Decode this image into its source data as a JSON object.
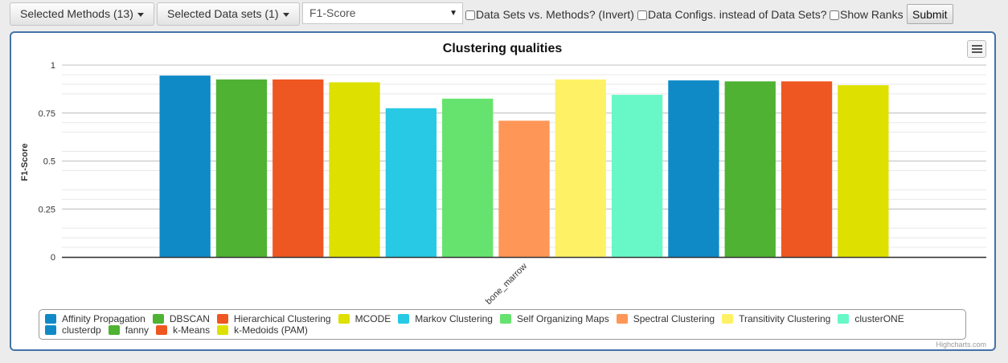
{
  "toolbar": {
    "methods_button": "Selected Methods (13)",
    "datasets_button": "Selected Data sets (1)",
    "metric_select": "F1-Score",
    "checkbox_invert": "Data Sets vs. Methods? (Invert)",
    "checkbox_configs": "Data Configs. instead of Data Sets?",
    "checkbox_ranks": "Show Ranks",
    "submit": "Submit"
  },
  "credits": "Highcharts.com",
  "chart_data": {
    "type": "bar",
    "title": "Clustering qualities",
    "ylabel": "F1-Score",
    "xlabel": "",
    "categories": [
      "bone_marrow"
    ],
    "ylim": [
      0,
      1
    ],
    "yticks": [
      "0",
      "0.25",
      "0.5",
      "0.75",
      "1"
    ],
    "grid": true,
    "legend_position": "bottom",
    "series": [
      {
        "name": "Affinity Propagation",
        "color": "#0f8ac7",
        "values": [
          0.945
        ]
      },
      {
        "name": "DBSCAN",
        "color": "#4fb233",
        "values": [
          0.925
        ]
      },
      {
        "name": "Hierarchical Clustering",
        "color": "#ef5722",
        "values": [
          0.925
        ]
      },
      {
        "name": "MCODE",
        "color": "#dee000",
        "values": [
          0.91
        ]
      },
      {
        "name": "Markov Clustering",
        "color": "#27c9e5",
        "values": [
          0.775
        ]
      },
      {
        "name": "Self Organizing Maps",
        "color": "#66e36e",
        "values": [
          0.825
        ]
      },
      {
        "name": "Spectral Clustering",
        "color": "#fd9656",
        "values": [
          0.71
        ]
      },
      {
        "name": "Transitivity Clustering",
        "color": "#fef166",
        "values": [
          0.925
        ]
      },
      {
        "name": "clusterONE",
        "color": "#68f8c8",
        "values": [
          0.845
        ]
      },
      {
        "name": "clusterdp",
        "color": "#0f8ac7",
        "values": [
          0.92
        ]
      },
      {
        "name": "fanny",
        "color": "#4fb233",
        "values": [
          0.915
        ]
      },
      {
        "name": "k-Means",
        "color": "#ef5722",
        "values": [
          0.915
        ]
      },
      {
        "name": "k-Medoids (PAM)",
        "color": "#dee000",
        "values": [
          0.895
        ]
      }
    ]
  }
}
